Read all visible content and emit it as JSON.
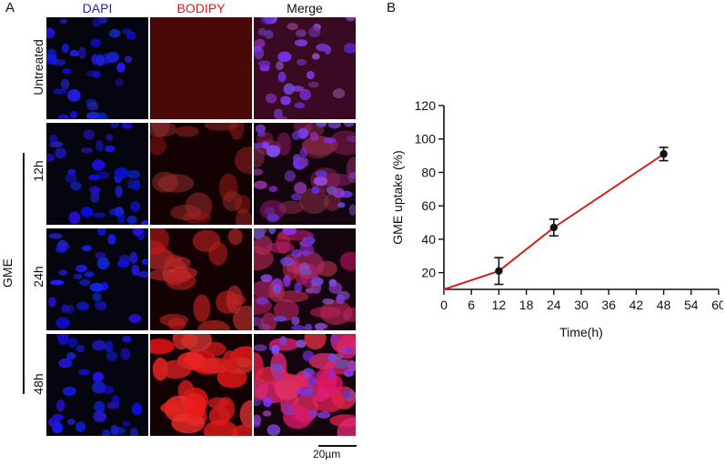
{
  "panel_a": {
    "letter": "A",
    "columns": [
      {
        "label": "DAPI",
        "color": "#1f1fd6"
      },
      {
        "label": "BODIPY",
        "color": "#e01818"
      },
      {
        "label": "Merge",
        "color": "#111111"
      }
    ],
    "rows": [
      {
        "label": "Untreated",
        "intensity": 0.0
      },
      {
        "label": "12h",
        "intensity": 0.35
      },
      {
        "label": "24h",
        "intensity": 0.65
      },
      {
        "label": "48h",
        "intensity": 1.0
      }
    ],
    "group_label": "GME",
    "scale_bar": "20µm"
  },
  "panel_b": {
    "letter": "B"
  },
  "chart_data": {
    "type": "line",
    "xlabel": "Time(h)",
    "ylabel": "GME uptake (%)",
    "xlim": [
      0,
      60
    ],
    "ylim": [
      10,
      120
    ],
    "xticks": [
      0,
      6,
      12,
      18,
      24,
      30,
      36,
      42,
      48,
      54,
      60
    ],
    "yticks": [
      20,
      40,
      60,
      80,
      100,
      120
    ],
    "line_color": "#d42020",
    "fit_line": {
      "x": [
        0,
        12,
        24,
        48
      ],
      "y": [
        10,
        21,
        47,
        91
      ]
    },
    "points": {
      "x": [
        12,
        24,
        48
      ],
      "y": [
        21,
        47,
        91
      ],
      "error": [
        8,
        5,
        4
      ]
    }
  }
}
